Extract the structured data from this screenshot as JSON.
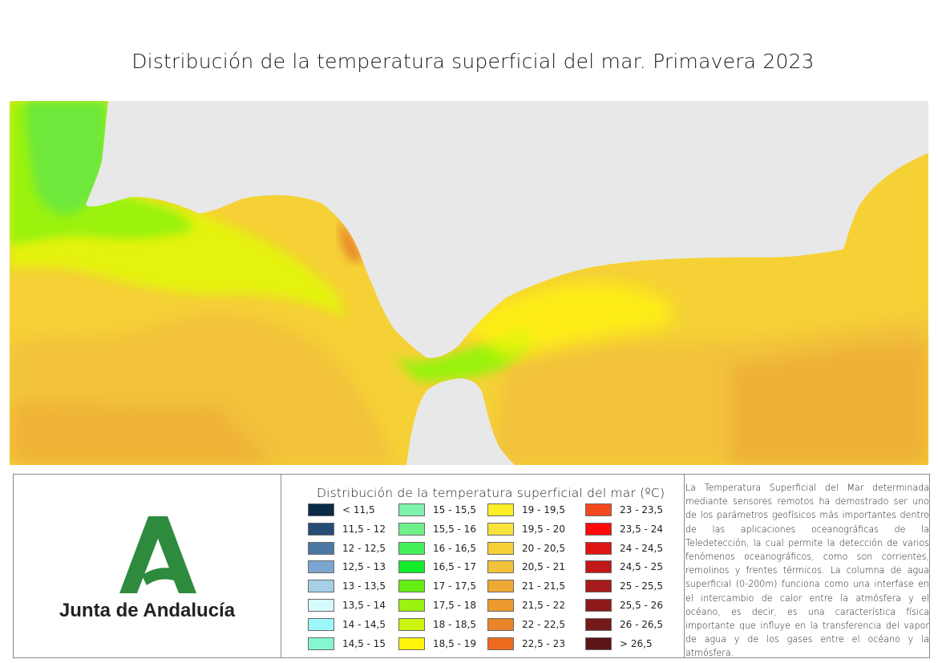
{
  "title": "Distribución de la temperatura superficial del mar. Primavera 2023",
  "logo": {
    "text": "Junta de Andalucía"
  },
  "legend": {
    "title": "Distribución de la temperatura superficial del mar (ºC)",
    "columns": [
      [
        {
          "label": "< 11,5",
          "color": "#0b2a48"
        },
        {
          "label": "11,5 - 12",
          "color": "#254c75"
        },
        {
          "label": "12 - 12,5",
          "color": "#4c78a4"
        },
        {
          "label": "12,5 - 13",
          "color": "#7aa6cf"
        },
        {
          "label": "13 - 13,5",
          "color": "#a6d0e6"
        },
        {
          "label": "13,5 - 14",
          "color": "#d6fafb"
        },
        {
          "label": "14 - 14,5",
          "color": "#9ef7f9"
        },
        {
          "label": "14,5 - 15",
          "color": "#86f6cf"
        }
      ],
      [
        {
          "label": "15 - 15,5",
          "color": "#7ff2ad"
        },
        {
          "label": "15,5 - 16",
          "color": "#6ef08a"
        },
        {
          "label": "16 - 16,5",
          "color": "#44f05a"
        },
        {
          "label": "16,5 - 17",
          "color": "#12ec2a"
        },
        {
          "label": "17 - 17,5",
          "color": "#64ee14"
        },
        {
          "label": "17,5 - 18",
          "color": "#9af20e"
        },
        {
          "label": "18 - 18,5",
          "color": "#cbf50c"
        },
        {
          "label": "18,5 - 19",
          "color": "#fff40a"
        }
      ],
      [
        {
          "label": "19 - 19,5",
          "color": "#fdee27"
        },
        {
          "label": "19,5 - 20",
          "color": "#f8e23c"
        },
        {
          "label": "20 - 20,5",
          "color": "#f5d136"
        },
        {
          "label": "20,5 - 21",
          "color": "#f2c23a"
        },
        {
          "label": "21 - 21,5",
          "color": "#eeaa34"
        },
        {
          "label": "21,5 - 22",
          "color": "#ec9930"
        },
        {
          "label": "22 - 22,5",
          "color": "#e9842a"
        },
        {
          "label": "22,5 - 23",
          "color": "#ee6a1e"
        }
      ],
      [
        {
          "label": "23 - 23,5",
          "color": "#f4481e"
        },
        {
          "label": "23,5 - 24",
          "color": "#ff0a0a"
        },
        {
          "label": "24 - 24,5",
          "color": "#e01414"
        },
        {
          "label": "24,5 - 25",
          "color": "#c01818"
        },
        {
          "label": "25 - 25,5",
          "color": "#a61b1b"
        },
        {
          "label": "25,5 - 26",
          "color": "#8c1a1a"
        },
        {
          "label": "26 - 26,5",
          "color": "#741a1a"
        },
        {
          "label": "> 26,5",
          "color": "#5c1618"
        }
      ]
    ]
  },
  "description": "La Temperatura Superficial del Mar determinada mediante sensores remotos ha demostrado ser uno de los parámetros geofísicos más importantes dentro de las aplicaciones oceanográficas de la Teledetección, la cual permite la detección de varios fenómenos oceanográficos, como son corrientes, remolinos y frentes térmicos. La columna de agua superficial (0-200m) funciona como una interfase en el intercambio de calor entre la atmósfera y el océano, es decir, es una característica física importante que influye en la transferencia del vapor de agua y de los gases entre el océano y la atmósfera.",
  "map_colors": {
    "land": "#e8e8e8",
    "atlantic_cool": "#6ee83a",
    "atlantic_green": "#9af20e",
    "atlantic_yellow": "#e4f20c",
    "coastal_yellow": "#fff40a",
    "warm": "#f5d136",
    "warmer": "#f2c23a",
    "warmest": "#eeaa34",
    "hot_spot": "#e9842a"
  }
}
